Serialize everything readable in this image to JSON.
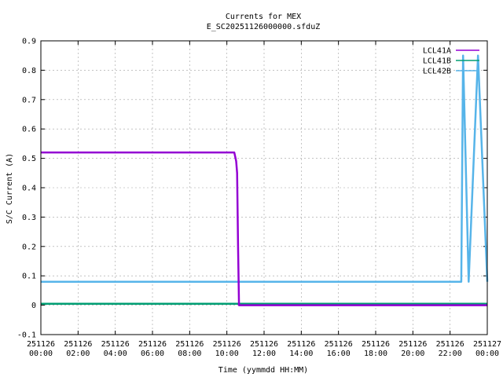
{
  "chart_data": {
    "type": "line",
    "title": "Currents for MEX",
    "subtitle": "E_SC20251126000000.sfduZ",
    "xlabel": "Time (yymmdd HH:MM)",
    "ylabel": "S/C Current (A)",
    "xlim": [
      0,
      24
    ],
    "ylim": [
      -0.1,
      0.9
    ],
    "yticks": [
      "-0.1",
      "0",
      "0.1",
      "0.2",
      "0.3",
      "0.4",
      "0.5",
      "0.6",
      "0.7",
      "0.8",
      "0.9"
    ],
    "xticks": [
      {
        "date": "251126",
        "time": "00:00"
      },
      {
        "date": "251126",
        "time": "02:00"
      },
      {
        "date": "251126",
        "time": "04:00"
      },
      {
        "date": "251126",
        "time": "06:00"
      },
      {
        "date": "251126",
        "time": "08:00"
      },
      {
        "date": "251126",
        "time": "10:00"
      },
      {
        "date": "251126",
        "time": "12:00"
      },
      {
        "date": "251126",
        "time": "14:00"
      },
      {
        "date": "251126",
        "time": "16:00"
      },
      {
        "date": "251126",
        "time": "18:00"
      },
      {
        "date": "251126",
        "time": "20:00"
      },
      {
        "date": "251126",
        "time": "22:00"
      },
      {
        "date": "251127",
        "time": "00:00"
      }
    ],
    "grid": true,
    "legend_position": "top-right",
    "series": [
      {
        "name": "LCL41A",
        "color": "#9400d3",
        "x": [
          0,
          2,
          4,
          6,
          8,
          10,
          10.4,
          10.5,
          10.55,
          10.6,
          10.65,
          24
        ],
        "y": [
          0.52,
          0.52,
          0.52,
          0.52,
          0.52,
          0.52,
          0.52,
          0.49,
          0.45,
          0.2,
          0.0,
          0.0
        ]
      },
      {
        "name": "LCL41B",
        "color": "#009e73",
        "x": [
          0,
          4,
          8,
          12,
          16,
          20,
          24
        ],
        "y": [
          0.005,
          0.005,
          0.005,
          0.005,
          0.005,
          0.005,
          0.005
        ]
      },
      {
        "name": "LCL42B",
        "color": "#56b4e9",
        "x": [
          0,
          4,
          8,
          12,
          16,
          20,
          22.6,
          22.7,
          23.0,
          23.5,
          24
        ],
        "y": [
          0.08,
          0.08,
          0.08,
          0.08,
          0.08,
          0.08,
          0.08,
          0.85,
          0.08,
          0.85,
          0.08
        ]
      }
    ]
  }
}
